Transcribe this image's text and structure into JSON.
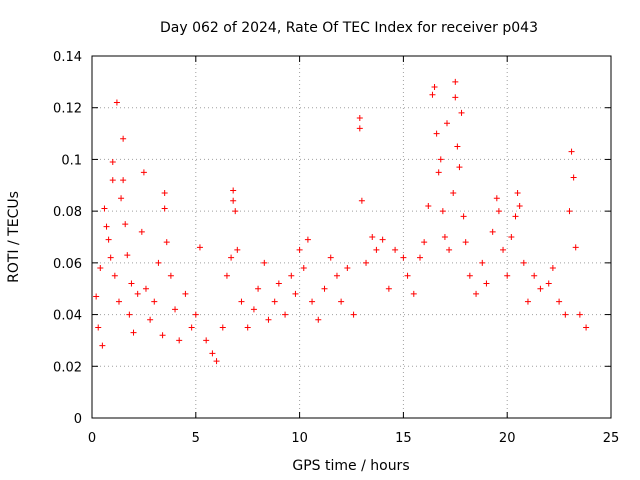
{
  "chart_data": {
    "type": "scatter",
    "title": "Day 062 of 2024, Rate Of TEC Index for receiver p043",
    "xlabel": "GPS time / hours",
    "ylabel": "ROTI / TECUs",
    "xlim": [
      0,
      25
    ],
    "ylim": [
      0,
      0.14
    ],
    "xticks": [
      0,
      5,
      10,
      15,
      20,
      25
    ],
    "xtick_labels": [
      "0",
      "5",
      "10",
      "15",
      "20",
      "25"
    ],
    "yticks": [
      0,
      0.02,
      0.04,
      0.06,
      0.08,
      0.1,
      0.12,
      0.14
    ],
    "ytick_labels": [
      "0",
      "0.02",
      "0.04",
      "0.06",
      "0.08",
      "0.1",
      "0.12",
      "0.14"
    ],
    "grid": true,
    "marker": "plus",
    "color": "#ff0000",
    "series": [
      {
        "name": "ROTI",
        "points": [
          [
            0.2,
            0.047
          ],
          [
            0.3,
            0.035
          ],
          [
            0.4,
            0.058
          ],
          [
            0.5,
            0.028
          ],
          [
            0.6,
            0.081
          ],
          [
            0.7,
            0.074
          ],
          [
            0.8,
            0.069
          ],
          [
            0.9,
            0.062
          ],
          [
            1.0,
            0.099
          ],
          [
            1.0,
            0.092
          ],
          [
            1.1,
            0.055
          ],
          [
            1.2,
            0.122
          ],
          [
            1.3,
            0.045
          ],
          [
            1.4,
            0.085
          ],
          [
            1.5,
            0.108
          ],
          [
            1.5,
            0.092
          ],
          [
            1.6,
            0.075
          ],
          [
            1.7,
            0.063
          ],
          [
            1.8,
            0.04
          ],
          [
            1.9,
            0.052
          ],
          [
            2.0,
            0.033
          ],
          [
            2.2,
            0.048
          ],
          [
            2.4,
            0.072
          ],
          [
            2.5,
            0.095
          ],
          [
            2.6,
            0.05
          ],
          [
            2.8,
            0.038
          ],
          [
            3.0,
            0.045
          ],
          [
            3.2,
            0.06
          ],
          [
            3.4,
            0.032
          ],
          [
            3.5,
            0.087
          ],
          [
            3.5,
            0.081
          ],
          [
            3.6,
            0.068
          ],
          [
            3.8,
            0.055
          ],
          [
            4.0,
            0.042
          ],
          [
            4.2,
            0.03
          ],
          [
            4.5,
            0.048
          ],
          [
            4.8,
            0.035
          ],
          [
            5.0,
            0.04
          ],
          [
            5.2,
            0.066
          ],
          [
            5.5,
            0.03
          ],
          [
            5.8,
            0.025
          ],
          [
            6.0,
            0.022
          ],
          [
            6.3,
            0.035
          ],
          [
            6.5,
            0.055
          ],
          [
            6.7,
            0.062
          ],
          [
            6.8,
            0.088
          ],
          [
            6.8,
            0.084
          ],
          [
            6.9,
            0.08
          ],
          [
            7.0,
            0.065
          ],
          [
            7.2,
            0.045
          ],
          [
            7.5,
            0.035
          ],
          [
            7.8,
            0.042
          ],
          [
            8.0,
            0.05
          ],
          [
            8.3,
            0.06
          ],
          [
            8.5,
            0.038
          ],
          [
            8.8,
            0.045
          ],
          [
            9.0,
            0.052
          ],
          [
            9.3,
            0.04
          ],
          [
            9.6,
            0.055
          ],
          [
            9.8,
            0.048
          ],
          [
            10.0,
            0.065
          ],
          [
            10.2,
            0.058
          ],
          [
            10.4,
            0.069
          ],
          [
            10.6,
            0.045
          ],
          [
            10.9,
            0.038
          ],
          [
            11.2,
            0.05
          ],
          [
            11.5,
            0.062
          ],
          [
            11.8,
            0.055
          ],
          [
            12.0,
            0.045
          ],
          [
            12.3,
            0.058
          ],
          [
            12.6,
            0.04
          ],
          [
            12.9,
            0.116
          ],
          [
            12.9,
            0.112
          ],
          [
            13.0,
            0.084
          ],
          [
            13.2,
            0.06
          ],
          [
            13.5,
            0.07
          ],
          [
            13.7,
            0.065
          ],
          [
            14.0,
            0.069
          ],
          [
            14.3,
            0.05
          ],
          [
            14.6,
            0.065
          ],
          [
            15.0,
            0.062
          ],
          [
            15.2,
            0.055
          ],
          [
            15.5,
            0.048
          ],
          [
            15.8,
            0.062
          ],
          [
            16.0,
            0.068
          ],
          [
            16.2,
            0.082
          ],
          [
            16.4,
            0.125
          ],
          [
            16.5,
            0.128
          ],
          [
            16.6,
            0.11
          ],
          [
            16.7,
            0.095
          ],
          [
            16.8,
            0.1
          ],
          [
            16.9,
            0.08
          ],
          [
            17.0,
            0.07
          ],
          [
            17.1,
            0.114
          ],
          [
            17.2,
            0.065
          ],
          [
            17.4,
            0.087
          ],
          [
            17.5,
            0.13
          ],
          [
            17.5,
            0.124
          ],
          [
            17.6,
            0.105
          ],
          [
            17.7,
            0.097
          ],
          [
            17.8,
            0.118
          ],
          [
            17.9,
            0.078
          ],
          [
            18.0,
            0.068
          ],
          [
            18.2,
            0.055
          ],
          [
            18.5,
            0.048
          ],
          [
            18.8,
            0.06
          ],
          [
            19.0,
            0.052
          ],
          [
            19.3,
            0.072
          ],
          [
            19.5,
            0.085
          ],
          [
            19.6,
            0.08
          ],
          [
            19.8,
            0.065
          ],
          [
            20.0,
            0.055
          ],
          [
            20.2,
            0.07
          ],
          [
            20.4,
            0.078
          ],
          [
            20.5,
            0.087
          ],
          [
            20.6,
            0.082
          ],
          [
            20.8,
            0.06
          ],
          [
            21.0,
            0.045
          ],
          [
            21.3,
            0.055
          ],
          [
            21.6,
            0.05
          ],
          [
            22.0,
            0.052
          ],
          [
            22.2,
            0.058
          ],
          [
            22.5,
            0.045
          ],
          [
            22.8,
            0.04
          ],
          [
            23.0,
            0.08
          ],
          [
            23.1,
            0.103
          ],
          [
            23.2,
            0.093
          ],
          [
            23.3,
            0.066
          ],
          [
            23.5,
            0.04
          ],
          [
            23.8,
            0.035
          ]
        ]
      }
    ]
  }
}
